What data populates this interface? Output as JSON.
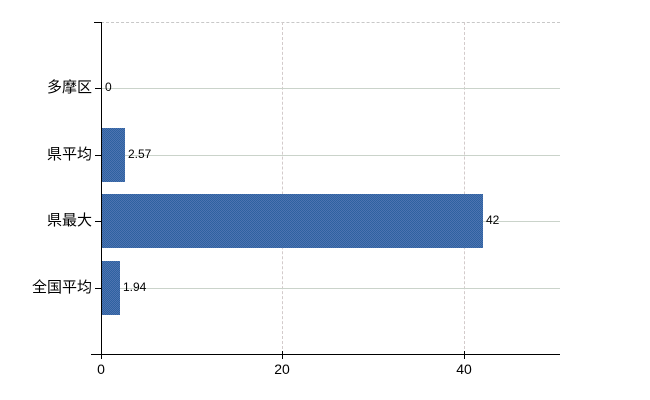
{
  "chart_data": {
    "type": "bar",
    "orientation": "horizontal",
    "title": "",
    "xlabel": "",
    "ylabel": "",
    "categories": [
      "多摩区",
      "県平均",
      "県最大",
      "全国平均"
    ],
    "values": [
      0,
      2.57,
      42,
      1.94
    ],
    "value_labels": [
      "0",
      "2.57",
      "42",
      "1.94"
    ],
    "x_ticks": [
      0,
      20,
      40
    ],
    "x_tick_labels": [
      "0",
      "20",
      "40"
    ],
    "xlim": [
      0,
      50.6
    ],
    "legend": "none",
    "grid": {
      "horizontal": "solid",
      "vertical": "dashed",
      "top_border": "dashed"
    },
    "colors": {
      "bar": "#3f6ba7",
      "bar_dither_light": "#4d73b1",
      "bar_dither_dark": "#2e62a0",
      "grid_horizontal": "#cad3ca",
      "grid_vertical": "#d3cbcb",
      "plot_top_border": "#c8c8c8",
      "axis": "#000000",
      "text": "#000000",
      "background": "#ffffff"
    }
  }
}
